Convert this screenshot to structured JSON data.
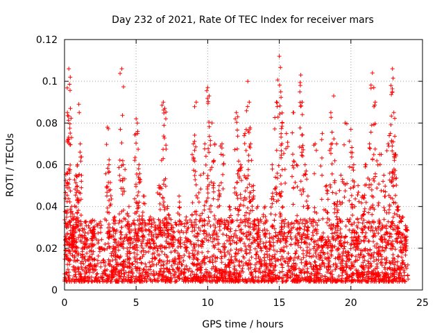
{
  "chart_data": {
    "type": "scatter",
    "title": "Day 232 of 2021, Rate Of TEC Index for receiver mars",
    "xlabel": "GPS time / hours",
    "ylabel": "ROTI / TECUs",
    "xlim": [
      0,
      25
    ],
    "ylim": [
      0,
      0.12
    ],
    "xticks": [
      "0",
      "5",
      "10",
      "15",
      "20",
      "25"
    ],
    "yticks": [
      "0",
      "0.02",
      "0.04",
      "0.06",
      "0.08",
      "0.1",
      "0.12"
    ],
    "grid": true,
    "marker": "+",
    "color": "#ff0000",
    "points_sampled": [
      [
        0.3,
        0.106
      ],
      [
        0.4,
        0.102
      ],
      [
        0.2,
        0.085
      ],
      [
        0.25,
        0.072
      ],
      [
        0.1,
        0.05
      ],
      [
        0.5,
        0.04
      ],
      [
        0.6,
        0.03
      ],
      [
        0.8,
        0.055
      ],
      [
        1.0,
        0.089
      ],
      [
        1.1,
        0.07
      ],
      [
        0.9,
        0.06
      ],
      [
        1.5,
        0.025
      ],
      [
        2.0,
        0.03
      ],
      [
        2.5,
        0.02
      ],
      [
        3.0,
        0.078
      ],
      [
        3.1,
        0.06
      ],
      [
        3.2,
        0.048
      ],
      [
        3.5,
        0.035
      ],
      [
        4.0,
        0.106
      ],
      [
        3.9,
        0.077
      ],
      [
        4.1,
        0.06
      ],
      [
        4.5,
        0.04
      ],
      [
        5.0,
        0.082
      ],
      [
        5.1,
        0.075
      ],
      [
        5.2,
        0.06
      ],
      [
        5.5,
        0.045
      ],
      [
        6.0,
        0.035
      ],
      [
        6.3,
        0.03
      ],
      [
        6.6,
        0.05
      ],
      [
        6.9,
        0.09
      ],
      [
        7.0,
        0.087
      ],
      [
        7.2,
        0.04
      ],
      [
        7.5,
        0.03
      ],
      [
        8.0,
        0.045
      ],
      [
        8.5,
        0.035
      ],
      [
        9.0,
        0.07
      ],
      [
        9.2,
        0.09
      ],
      [
        9.5,
        0.055
      ],
      [
        9.8,
        0.07
      ],
      [
        10.0,
        0.097
      ],
      [
        10.1,
        0.093
      ],
      [
        10.3,
        0.08
      ],
      [
        10.5,
        0.07
      ],
      [
        10.8,
        0.05
      ],
      [
        11.0,
        0.07
      ],
      [
        11.5,
        0.04
      ],
      [
        12.0,
        0.085
      ],
      [
        12.1,
        0.083
      ],
      [
        12.3,
        0.06
      ],
      [
        12.6,
        0.075
      ],
      [
        12.8,
        0.1
      ],
      [
        12.9,
        0.09
      ],
      [
        13.0,
        0.07
      ],
      [
        13.2,
        0.05
      ],
      [
        13.5,
        0.04
      ],
      [
        14.0,
        0.04
      ],
      [
        14.5,
        0.06
      ],
      [
        14.8,
        0.09
      ],
      [
        15.0,
        0.112
      ],
      [
        15.1,
        0.095
      ],
      [
        15.2,
        0.08
      ],
      [
        15.5,
        0.075
      ],
      [
        16.0,
        0.085
      ],
      [
        16.2,
        0.06
      ],
      [
        16.5,
        0.103
      ],
      [
        16.6,
        0.09
      ],
      [
        16.8,
        0.06
      ],
      [
        17.0,
        0.045
      ],
      [
        17.5,
        0.07
      ],
      [
        18.0,
        0.075
      ],
      [
        18.3,
        0.05
      ],
      [
        18.6,
        0.085
      ],
      [
        18.8,
        0.093
      ],
      [
        19.0,
        0.07
      ],
      [
        19.3,
        0.055
      ],
      [
        19.6,
        0.08
      ],
      [
        20.0,
        0.077
      ],
      [
        20.2,
        0.06
      ],
      [
        20.5,
        0.05
      ],
      [
        20.8,
        0.045
      ],
      [
        21.0,
        0.06
      ],
      [
        21.3,
        0.07
      ],
      [
        21.5,
        0.104
      ],
      [
        21.6,
        0.097
      ],
      [
        21.7,
        0.09
      ],
      [
        22.0,
        0.065
      ],
      [
        22.3,
        0.055
      ],
      [
        22.6,
        0.07
      ],
      [
        22.8,
        0.098
      ],
      [
        22.9,
        0.106
      ],
      [
        23.0,
        0.085
      ],
      [
        23.1,
        0.065
      ],
      [
        23.3,
        0.04
      ],
      [
        23.6,
        0.035
      ],
      [
        23.9,
        0.03
      ]
    ]
  }
}
